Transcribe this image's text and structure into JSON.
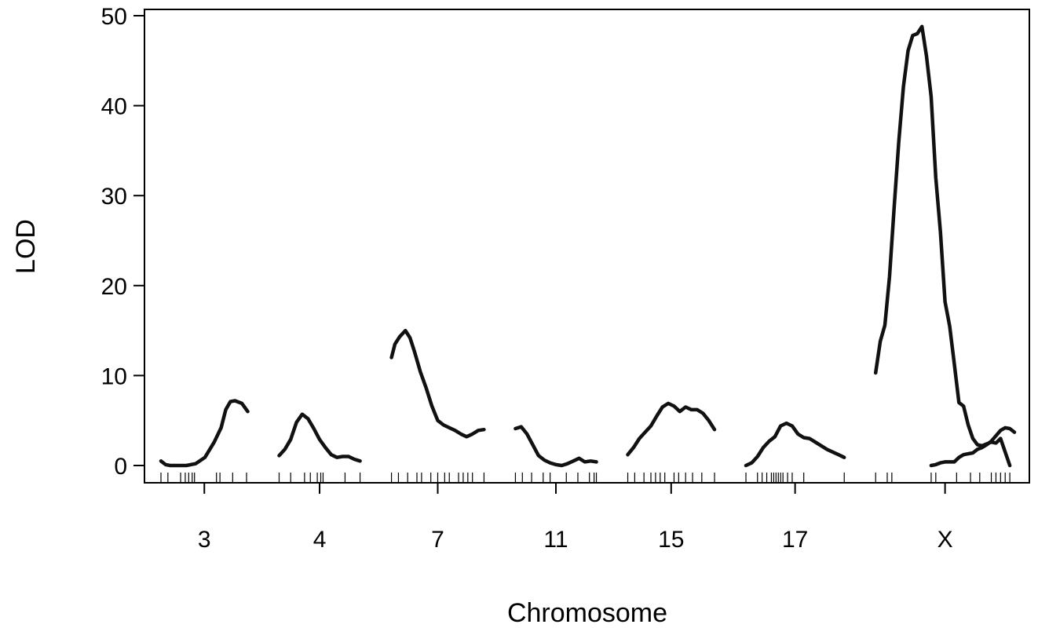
{
  "chart_data": {
    "type": "line",
    "title": "",
    "xlabel": "Chromosome",
    "ylabel": "LOD",
    "ylim": [
      0,
      50
    ],
    "yticks": [
      0,
      10,
      20,
      30,
      40,
      50
    ],
    "grid": false,
    "legend": "none",
    "line_color": "#111111",
    "chromosomes": [
      {
        "name": "3",
        "x": [
          0,
          4,
          8,
          15,
          22,
          30,
          38,
          46,
          52,
          56,
          60,
          64,
          70,
          75
        ],
        "y": [
          0.5,
          0.1,
          0.0,
          0.0,
          0.0,
          0.2,
          0.9,
          2.6,
          4.2,
          6.2,
          7.1,
          7.2,
          6.9,
          6.0
        ],
        "markers": [
          0,
          6,
          17,
          21,
          24,
          27,
          29,
          48,
          51,
          62,
          74
        ]
      },
      {
        "name": "4",
        "x": [
          0,
          5,
          10,
          15,
          20,
          25,
          30,
          35,
          40,
          45,
          50,
          55,
          60,
          65,
          70
        ],
        "y": [
          1.1,
          1.8,
          2.9,
          4.8,
          5.7,
          5.2,
          4.1,
          2.9,
          2.0,
          1.2,
          0.9,
          1.0,
          1.0,
          0.7,
          0.5
        ],
        "markers": [
          0,
          10,
          22,
          27,
          33,
          36,
          38,
          57,
          70
        ]
      },
      {
        "name": "7",
        "x": [
          0,
          3,
          7,
          12,
          16,
          20,
          25,
          30,
          35,
          40,
          45,
          50,
          55,
          60,
          65,
          70,
          75,
          80
        ],
        "y": [
          12.0,
          13.5,
          14.3,
          15.0,
          14.2,
          12.6,
          10.4,
          8.6,
          6.6,
          5.0,
          4.5,
          4.2,
          3.9,
          3.5,
          3.2,
          3.5,
          3.9,
          4.0
        ],
        "markers": [
          0,
          6,
          14,
          22,
          26,
          34,
          40,
          46,
          50,
          58,
          62,
          66,
          70,
          80
        ]
      },
      {
        "name": "11",
        "x": [
          0,
          5,
          10,
          15,
          20,
          25,
          30,
          35,
          40,
          45,
          50,
          55,
          60,
          65,
          70
        ],
        "y": [
          4.1,
          4.3,
          3.5,
          2.3,
          1.1,
          0.6,
          0.3,
          0.1,
          0.0,
          0.2,
          0.5,
          0.8,
          0.4,
          0.5,
          0.4
        ],
        "markers": [
          0,
          6,
          14,
          24,
          30,
          44,
          54,
          64,
          68,
          70
        ]
      },
      {
        "name": "15",
        "x": [
          0,
          5,
          10,
          15,
          20,
          25,
          30,
          35,
          40,
          45,
          50,
          55,
          60,
          65,
          70,
          75
        ],
        "y": [
          1.2,
          2.0,
          3.0,
          3.7,
          4.4,
          5.5,
          6.5,
          6.9,
          6.6,
          6.0,
          6.5,
          6.2,
          6.2,
          5.8,
          5.0,
          4.0
        ],
        "markers": [
          0,
          6,
          14,
          20,
          24,
          28,
          32,
          40,
          44,
          50,
          56,
          64,
          75
        ]
      },
      {
        "name": "17",
        "x": [
          0,
          5,
          10,
          15,
          20,
          25,
          30,
          35,
          40,
          45,
          50,
          55,
          60,
          65,
          70,
          75,
          80,
          85
        ],
        "y": [
          0.0,
          0.3,
          1.0,
          2.0,
          2.7,
          3.2,
          4.4,
          4.7,
          4.4,
          3.5,
          3.1,
          3.0,
          2.6,
          2.2,
          1.8,
          1.5,
          1.2,
          0.9
        ],
        "markers": [
          0,
          10,
          14,
          18,
          22,
          24,
          26,
          28,
          30,
          32,
          36,
          40,
          50,
          85
        ]
      },
      {
        "name": "X",
        "series": [
          {
            "x": [
              0,
              4,
              8,
              12,
              16,
              20,
              24,
              28,
              32,
              36,
              40,
              44,
              48,
              52,
              56,
              60,
              64,
              68,
              72,
              76,
              80,
              84,
              88,
              92,
              96,
              100,
              104,
              108,
              112,
              116
            ],
            "y": [
              10.3,
              13.8,
              15.6,
              21.0,
              28.7,
              36.0,
              42.1,
              46.1,
              47.8,
              48.0,
              48.8,
              45.5,
              41.0,
              32.0,
              26.0,
              18.2,
              15.5,
              11.3,
              7.0,
              6.6,
              4.5,
              3.0,
              2.3,
              2.2,
              2.4,
              2.6,
              2.5,
              3.0,
              1.5,
              0.0
            ],
            "comment": ""
          },
          {
            "x": [
              48,
              52,
              56,
              60,
              64,
              68,
              72,
              76,
              80,
              84,
              88,
              92,
              96,
              100,
              104,
              108,
              112,
              116,
              120
            ],
            "y": [
              0.0,
              0.1,
              0.3,
              0.4,
              0.4,
              0.4,
              0.9,
              1.2,
              1.3,
              1.4,
              1.8,
              2.0,
              2.3,
              2.7,
              3.3,
              3.9,
              4.2,
              4.1,
              3.7
            ]
          }
        ],
        "markers": [
          0,
          10,
          14,
          48,
          52,
          70,
          82,
          90,
          100,
          104,
          108,
          112,
          116
        ]
      }
    ]
  }
}
